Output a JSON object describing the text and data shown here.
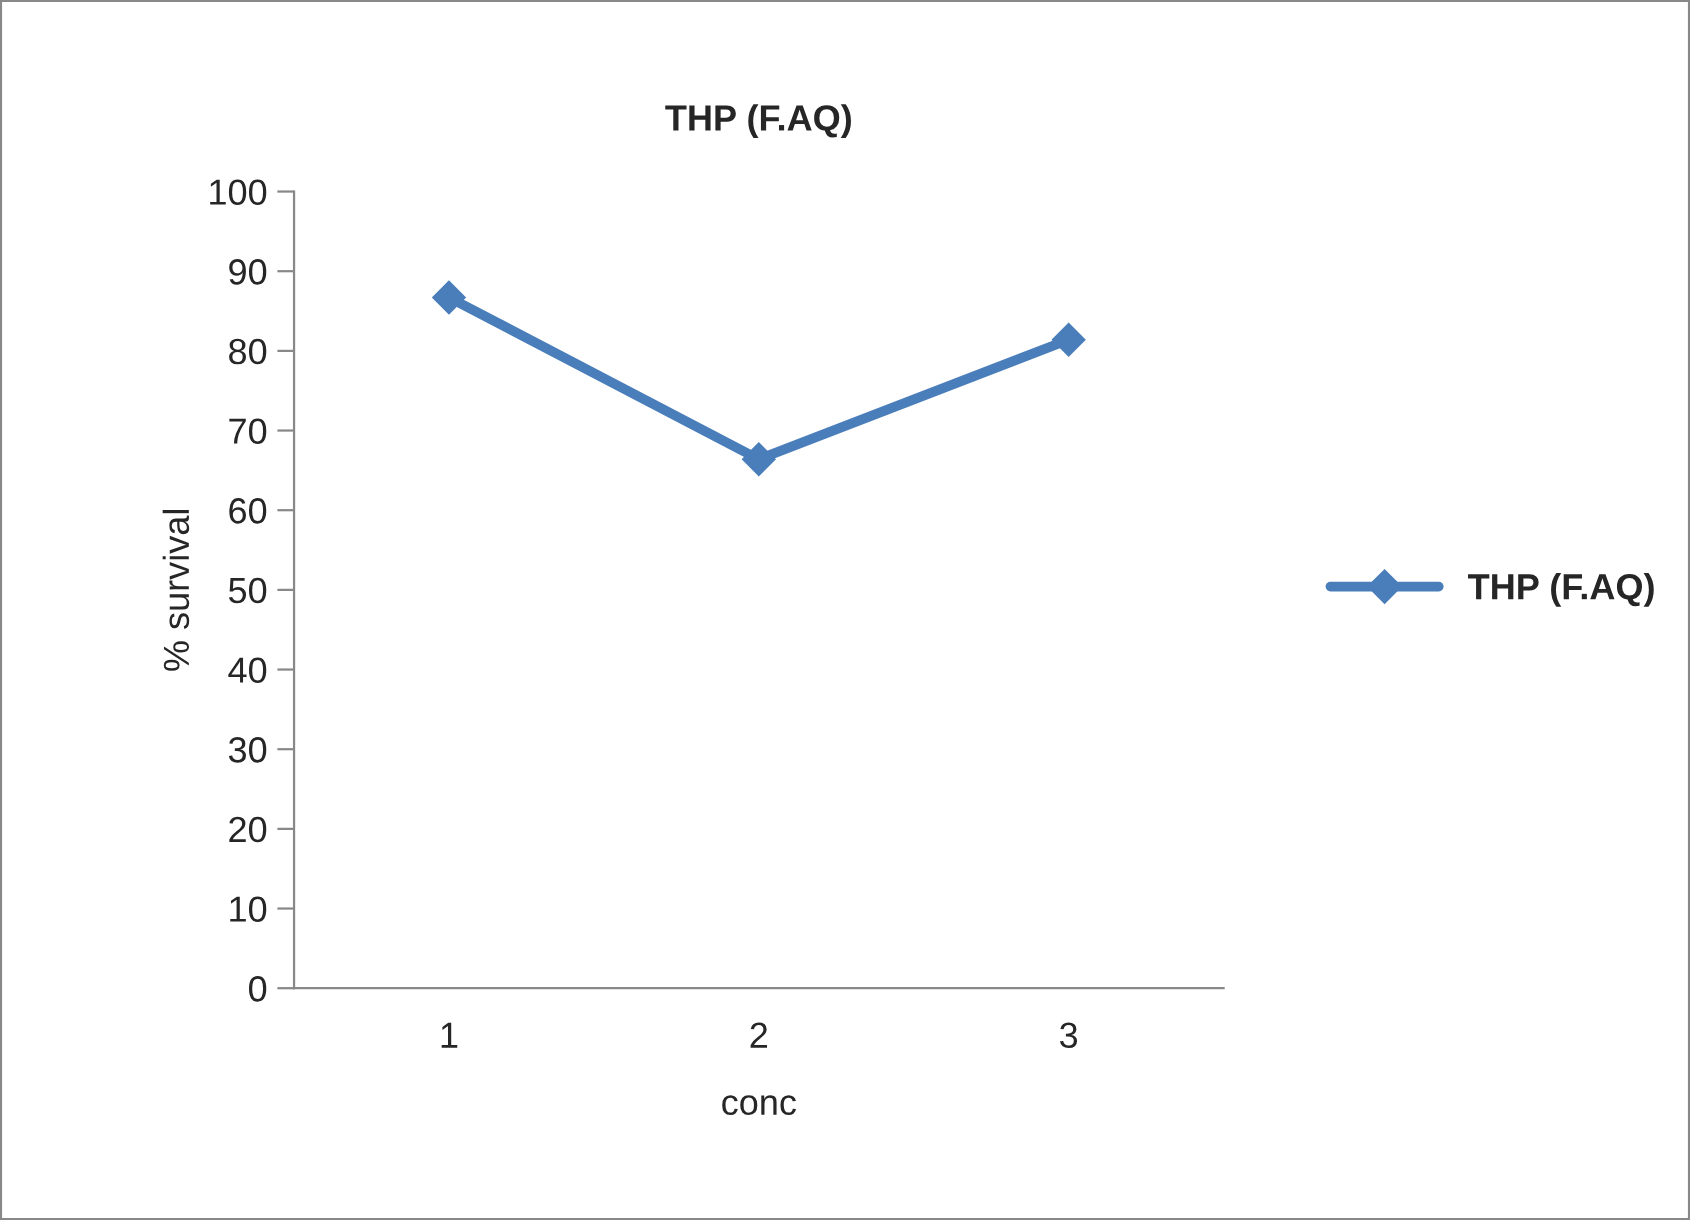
{
  "chart_data": {
    "type": "line",
    "title": "THP (F.AQ)",
    "xlabel": "conc",
    "ylabel": "% survival",
    "categories": [
      "1",
      "2",
      "3"
    ],
    "series": [
      {
        "name": "THP (F.AQ)",
        "color": "#4a7ebb",
        "values": [
          86.7,
          66.4,
          81.4
        ]
      }
    ],
    "ylim": [
      0,
      100
    ],
    "yticks": [
      0,
      10,
      20,
      30,
      40,
      50,
      60,
      70,
      80,
      90,
      100
    ],
    "grid": false,
    "legend": "right",
    "marker": "diamond",
    "line_style": "solid"
  }
}
